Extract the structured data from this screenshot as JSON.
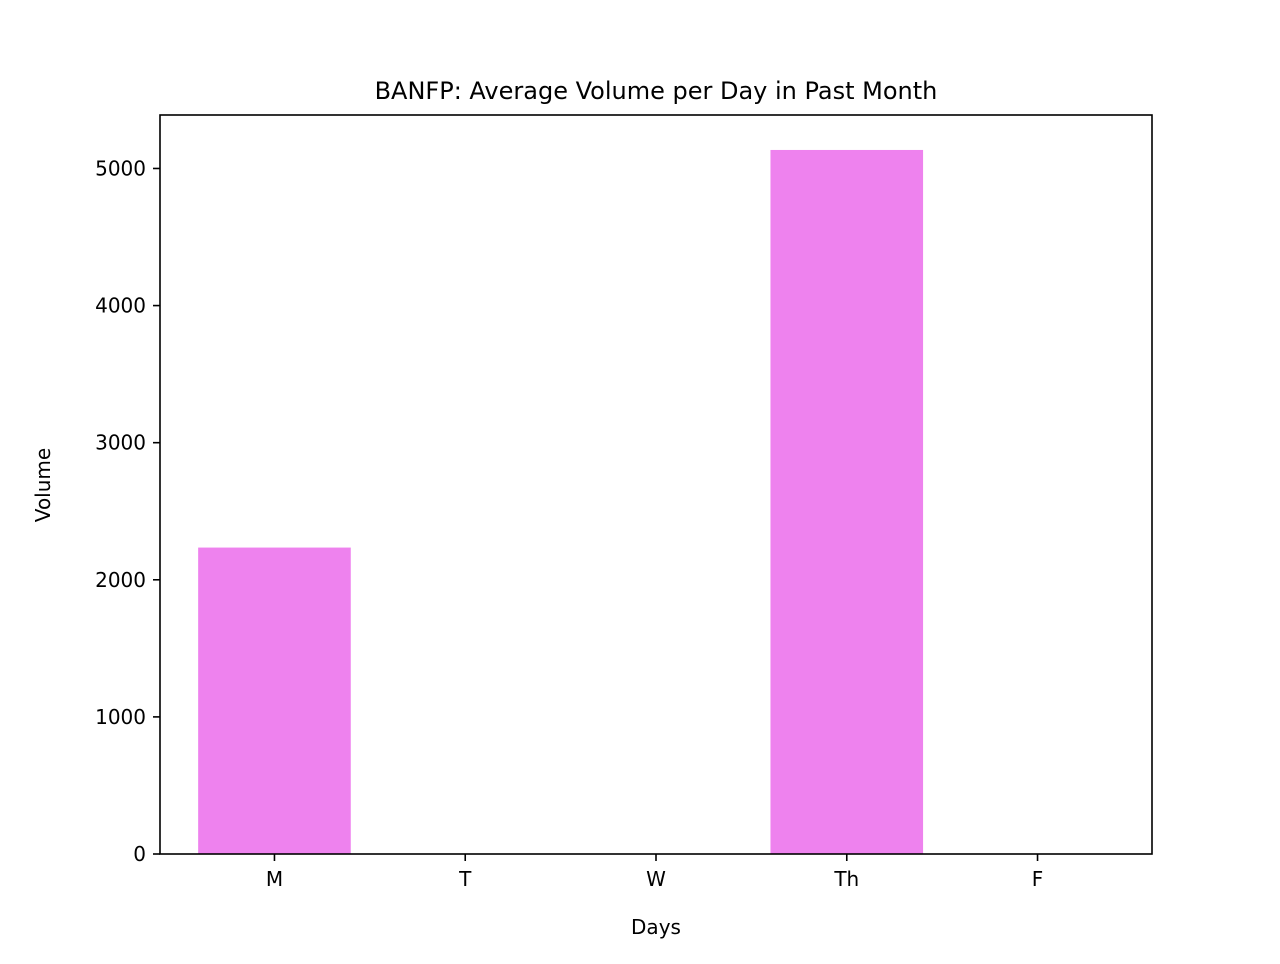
{
  "chart_data": {
    "type": "bar",
    "title": "BANFP: Average Volume per Day in Past Month",
    "xlabel": "Days",
    "ylabel": "Volume",
    "categories": [
      "M",
      "T",
      "W",
      "Th",
      "F"
    ],
    "values": [
      2235,
      0,
      0,
      5135,
      0
    ],
    "ylim": [
      0,
      5390
    ],
    "yticks": [
      0,
      1000,
      2000,
      3000,
      4000,
      5000
    ],
    "grid": false,
    "legend": "none",
    "bar_color": "#ee82ee"
  }
}
